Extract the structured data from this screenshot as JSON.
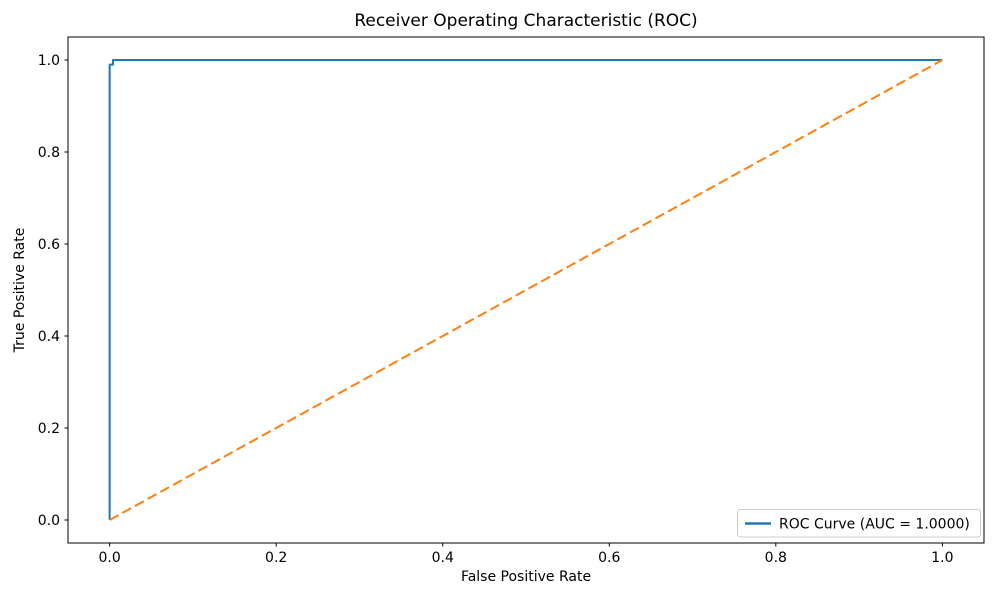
{
  "figure": {
    "background_color": "#ffffff",
    "spine_color": "#000000",
    "text_color": "#000000"
  },
  "chart_data": {
    "type": "line",
    "title": "Receiver Operating Characteristic (ROC)",
    "xlabel": "False Positive Rate",
    "ylabel": "True Positive Rate",
    "xlim": [
      -0.05,
      1.05
    ],
    "ylim": [
      -0.05,
      1.05
    ],
    "x_ticks": [
      0.0,
      0.2,
      0.4,
      0.6,
      0.8,
      1.0
    ],
    "x_tick_labels": [
      "0.0",
      "0.2",
      "0.4",
      "0.6",
      "0.8",
      "1.0"
    ],
    "y_ticks": [
      0.0,
      0.2,
      0.4,
      0.6,
      0.8,
      1.0
    ],
    "y_tick_labels": [
      "0.0",
      "0.2",
      "0.4",
      "0.6",
      "0.8",
      "1.0"
    ],
    "grid": false,
    "legend_position": "lower right",
    "series": [
      {
        "id": "roc-curve",
        "name": "ROC Curve (AUC = 1.0000)",
        "color": "#1f77b4",
        "style": "solid",
        "line_width": 2,
        "x": [
          0.0,
          0.0,
          0.004,
          0.004,
          1.0
        ],
        "y": [
          0.0,
          0.99,
          0.99,
          1.0,
          1.0
        ],
        "in_legend": true
      },
      {
        "id": "chance-diagonal",
        "name": "Chance diagonal",
        "color": "#ff7f0e",
        "style": "dashed",
        "line_width": 2,
        "x": [
          0.0,
          1.0
        ],
        "y": [
          0.0,
          1.0
        ],
        "in_legend": false
      }
    ],
    "legend": {
      "entries": [
        {
          "label": "ROC Curve (AUC = 1.0000)",
          "color": "#1f77b4",
          "style": "solid"
        }
      ],
      "border_color": "#cccccc",
      "background_color": "#ffffff"
    }
  }
}
